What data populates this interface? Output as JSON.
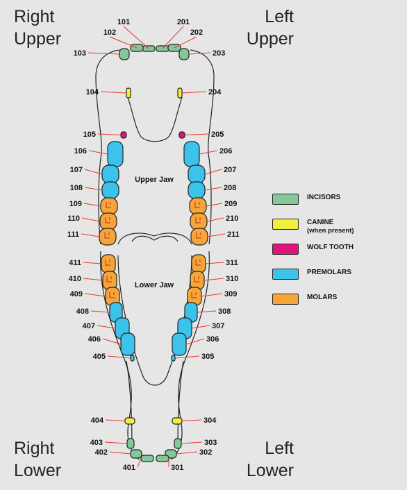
{
  "corners": {
    "right_upper": [
      "Right",
      "Upper"
    ],
    "left_upper": [
      "Left",
      "Upper"
    ],
    "right_lower": [
      "Right",
      "Lower"
    ],
    "left_lower": [
      "Left",
      "Lower"
    ]
  },
  "jaw_labels": {
    "upper": "Upper Jaw",
    "lower": "Lower Jaw"
  },
  "colors": {
    "incisors": "#84c89a",
    "canine": "#f2ef3a",
    "wolf_tooth": "#e0137a",
    "premolars": "#3cc3ec",
    "molars": "#f6a53a",
    "leader": "#e8352b"
  },
  "legend": [
    {
      "key": "incisors",
      "label": "INCISORS",
      "sub": ""
    },
    {
      "key": "canine",
      "label": "CANINE",
      "sub": "(when present)"
    },
    {
      "key": "wolf_tooth",
      "label": "WOLF TOOTH",
      "sub": ""
    },
    {
      "key": "premolars",
      "label": "PREMOLARS",
      "sub": ""
    },
    {
      "key": "molars",
      "label": "MOLARS",
      "sub": ""
    }
  ],
  "teeth": [
    {
      "id": "101",
      "type": "incisors"
    },
    {
      "id": "102",
      "type": "incisors"
    },
    {
      "id": "103",
      "type": "incisors"
    },
    {
      "id": "201",
      "type": "incisors"
    },
    {
      "id": "202",
      "type": "incisors"
    },
    {
      "id": "203",
      "type": "incisors"
    },
    {
      "id": "104",
      "type": "canine"
    },
    {
      "id": "204",
      "type": "canine"
    },
    {
      "id": "105",
      "type": "wolf_tooth"
    },
    {
      "id": "205",
      "type": "wolf_tooth"
    },
    {
      "id": "106",
      "type": "premolars"
    },
    {
      "id": "107",
      "type": "premolars"
    },
    {
      "id": "108",
      "type": "premolars"
    },
    {
      "id": "206",
      "type": "premolars"
    },
    {
      "id": "207",
      "type": "premolars"
    },
    {
      "id": "208",
      "type": "premolars"
    },
    {
      "id": "109",
      "type": "molars"
    },
    {
      "id": "110",
      "type": "molars"
    },
    {
      "id": "111",
      "type": "molars"
    },
    {
      "id": "209",
      "type": "molars"
    },
    {
      "id": "210",
      "type": "molars"
    },
    {
      "id": "211",
      "type": "molars"
    },
    {
      "id": "411",
      "type": "molars"
    },
    {
      "id": "410",
      "type": "molars"
    },
    {
      "id": "409",
      "type": "molars"
    },
    {
      "id": "311",
      "type": "molars"
    },
    {
      "id": "310",
      "type": "molars"
    },
    {
      "id": "309",
      "type": "molars"
    },
    {
      "id": "408",
      "type": "premolars"
    },
    {
      "id": "407",
      "type": "premolars"
    },
    {
      "id": "406",
      "type": "premolars"
    },
    {
      "id": "308",
      "type": "premolars"
    },
    {
      "id": "307",
      "type": "premolars"
    },
    {
      "id": "306",
      "type": "premolars"
    },
    {
      "id": "405",
      "type": "premolars"
    },
    {
      "id": "305",
      "type": "premolars"
    },
    {
      "id": "404",
      "type": "canine"
    },
    {
      "id": "304",
      "type": "canine"
    },
    {
      "id": "403",
      "type": "incisors"
    },
    {
      "id": "402",
      "type": "incisors"
    },
    {
      "id": "401",
      "type": "incisors"
    },
    {
      "id": "303",
      "type": "incisors"
    },
    {
      "id": "302",
      "type": "incisors"
    },
    {
      "id": "301",
      "type": "incisors"
    }
  ]
}
